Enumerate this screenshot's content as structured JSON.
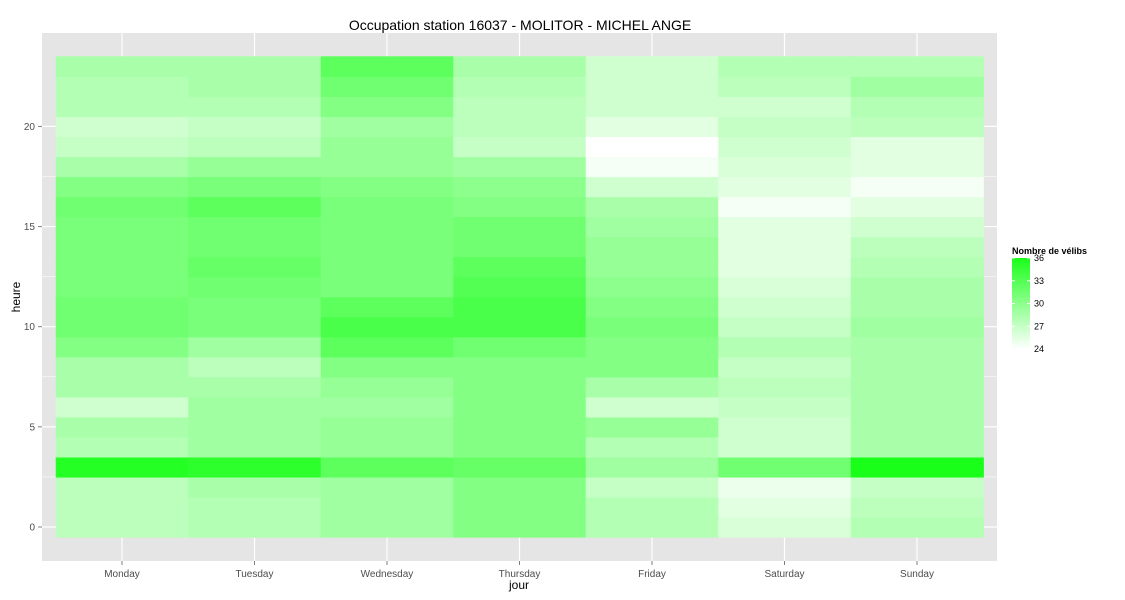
{
  "chart_data": {
    "type": "heatmap",
    "title": "Occupation station 16037 - MOLITOR - MICHEL ANGE",
    "xlabel": "jour",
    "ylabel": "heure",
    "x_categories": [
      "Monday",
      "Tuesday",
      "Wednesday",
      "Thursday",
      "Friday",
      "Saturday",
      "Sunday"
    ],
    "y_values": [
      0,
      1,
      2,
      3,
      4,
      5,
      6,
      7,
      8,
      9,
      10,
      11,
      12,
      13,
      14,
      15,
      16,
      17,
      18,
      19,
      20,
      21,
      22,
      23
    ],
    "y_ticks": [
      0,
      5,
      10,
      15,
      20
    ],
    "ylim": [
      -0.5,
      23.5
    ],
    "grid": true,
    "values": [
      [
        27.5,
        28.0,
        29.0,
        30.5,
        28.0,
        26.0,
        28.0
      ],
      [
        27.5,
        28.0,
        29.0,
        30.5,
        28.0,
        25.5,
        27.5
      ],
      [
        27.5,
        28.5,
        29.0,
        30.5,
        27.0,
        25.0,
        27.0
      ],
      [
        35.5,
        35.0,
        32.5,
        32.0,
        29.0,
        31.5,
        36.0
      ],
      [
        28.0,
        29.0,
        29.5,
        30.5,
        28.0,
        26.5,
        28.5
      ],
      [
        28.5,
        29.0,
        29.5,
        30.5,
        29.5,
        26.5,
        28.5
      ],
      [
        26.5,
        29.0,
        29.0,
        30.5,
        26.5,
        27.0,
        28.5
      ],
      [
        28.5,
        28.5,
        29.5,
        30.5,
        28.5,
        27.5,
        28.5
      ],
      [
        28.5,
        27.5,
        30.5,
        30.5,
        30.5,
        27.0,
        28.5
      ],
      [
        30.5,
        29.0,
        32.5,
        31.5,
        30.5,
        28.0,
        28.5
      ],
      [
        31.5,
        31.0,
        33.5,
        33.5,
        31.0,
        27.0,
        29.0
      ],
      [
        31.5,
        31.0,
        32.5,
        33.5,
        30.5,
        26.5,
        28.5
      ],
      [
        31.0,
        31.5,
        31.0,
        33.0,
        30.0,
        26.0,
        28.5
      ],
      [
        31.0,
        32.0,
        31.0,
        32.5,
        29.5,
        25.5,
        28.0
      ],
      [
        31.0,
        31.5,
        31.0,
        31.5,
        29.5,
        25.5,
        27.5
      ],
      [
        31.0,
        31.5,
        31.0,
        31.5,
        29.0,
        25.5,
        26.5
      ],
      [
        31.5,
        32.5,
        31.0,
        30.5,
        28.5,
        24.5,
        25.5
      ],
      [
        30.5,
        31.0,
        30.5,
        30.0,
        26.5,
        25.5,
        24.5
      ],
      [
        28.5,
        29.5,
        29.5,
        29.0,
        24.5,
        26.0,
        25.5
      ],
      [
        27.0,
        27.5,
        29.5,
        27.0,
        24.0,
        26.5,
        25.5
      ],
      [
        26.5,
        27.0,
        29.0,
        27.5,
        25.5,
        27.0,
        27.5
      ],
      [
        28.0,
        28.0,
        30.5,
        27.5,
        26.5,
        26.5,
        28.0
      ],
      [
        28.0,
        28.5,
        31.5,
        28.0,
        26.5,
        27.5,
        29.0
      ],
      [
        28.5,
        28.5,
        32.5,
        28.5,
        26.5,
        28.0,
        28.0
      ]
    ],
    "legend": {
      "title": "Nombre de vélibs",
      "position": "right",
      "breaks": [
        36,
        33,
        30,
        27,
        24
      ],
      "min": 24,
      "max": 36,
      "low_color": "#ffffff",
      "high_color": "#1aff1a"
    }
  },
  "colors": {
    "panel_background": "#e5e5e5",
    "gridline": "#ffffff",
    "tick_text": "#4d4d4d"
  }
}
